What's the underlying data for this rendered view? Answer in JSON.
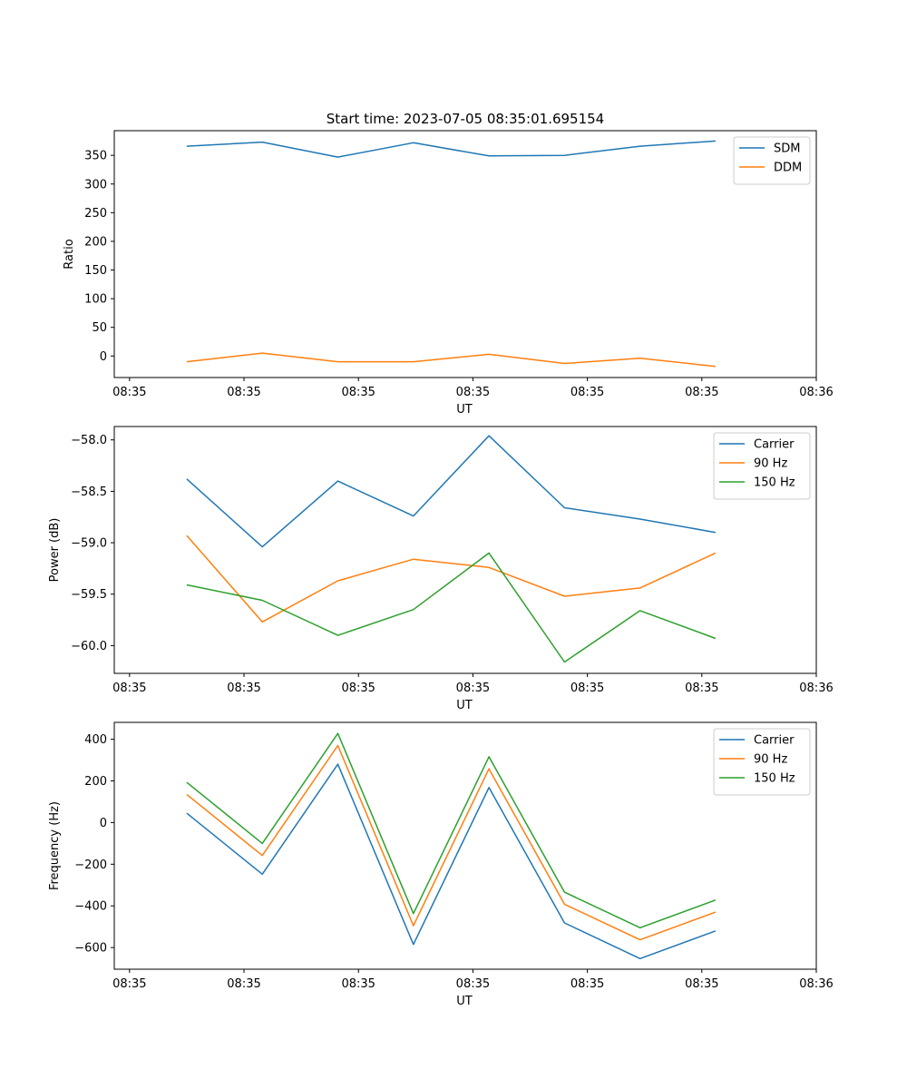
{
  "chart_data": [
    {
      "type": "line",
      "title": "Start time: 2023-07-05 08:35:01.695154",
      "xlabel": "UT",
      "ylabel": "Ratio",
      "xlim": [
        -0.2,
        9.0
      ],
      "x_ticks": [
        0,
        1.5,
        3,
        4.5,
        6,
        7.5,
        9
      ],
      "x_tick_labels": [
        "08:35",
        "08:35",
        "08:35",
        "08:35",
        "08:35",
        "08:35",
        "08:36"
      ],
      "ylim": [
        -37.5,
        393
      ],
      "y_ticks": [
        0,
        50,
        100,
        150,
        200,
        250,
        300,
        350
      ],
      "legend_position": "top-right",
      "x": [
        0.75,
        1.74,
        2.73,
        3.72,
        4.71,
        5.7,
        6.69,
        7.68
      ],
      "series": [
        {
          "name": "SDM",
          "color": "#1f77b4",
          "values": [
            366,
            373,
            347,
            372,
            349,
            350,
            366,
            375
          ]
        },
        {
          "name": "DDM",
          "color": "#ff7f0e",
          "values": [
            -10,
            5,
            -10,
            -10,
            3,
            -13,
            -4,
            -18
          ]
        }
      ]
    },
    {
      "type": "line",
      "title": "",
      "xlabel": "UT",
      "ylabel": "Power (dB)",
      "xlim": [
        -0.2,
        9.0
      ],
      "x_ticks": [
        0,
        1.5,
        3,
        4.5,
        6,
        7.5,
        9
      ],
      "x_tick_labels": [
        "08:35",
        "08:35",
        "08:35",
        "08:35",
        "08:35",
        "08:35",
        "08:36"
      ],
      "ylim": [
        -60.27,
        -57.87
      ],
      "y_ticks": [
        -60.0,
        -59.5,
        -59.0,
        -58.5,
        -58.0
      ],
      "y_tick_labels": [
        "−60.0",
        "−59.5",
        "−59.0",
        "−58.5",
        "−58.0"
      ],
      "legend_position": "top-right",
      "x": [
        0.75,
        1.74,
        2.73,
        3.72,
        4.71,
        5.7,
        6.69,
        7.68
      ],
      "series": [
        {
          "name": "Carrier",
          "color": "#1f77b4",
          "values": [
            -58.38,
            -59.04,
            -58.4,
            -58.74,
            -57.96,
            -58.66,
            -58.77,
            -58.9
          ]
        },
        {
          "name": "90 Hz",
          "color": "#ff7f0e",
          "values": [
            -58.93,
            -59.77,
            -59.37,
            -59.16,
            -59.24,
            -59.52,
            -59.44,
            -59.1
          ]
        },
        {
          "name": "150 Hz",
          "color": "#2ca02c",
          "values": [
            -59.41,
            -59.56,
            -59.9,
            -59.65,
            -59.1,
            -60.16,
            -59.66,
            -59.93
          ]
        }
      ]
    },
    {
      "type": "line",
      "title": "",
      "xlabel": "UT",
      "ylabel": "Frequency (Hz)",
      "xlim": [
        -0.2,
        9.0
      ],
      "x_ticks": [
        0,
        1.5,
        3,
        4.5,
        6,
        7.5,
        9
      ],
      "x_tick_labels": [
        "08:35",
        "08:35",
        "08:35",
        "08:35",
        "08:35",
        "08:35",
        "08:36"
      ],
      "ylim": [
        -704,
        481
      ],
      "y_ticks": [
        -600,
        -400,
        -200,
        0,
        200,
        400
      ],
      "y_tick_labels": [
        "−600",
        "−400",
        "−200",
        "0",
        "200",
        "400"
      ],
      "legend_position": "top-right",
      "x": [
        0.75,
        1.74,
        2.73,
        3.72,
        4.71,
        5.7,
        6.69,
        7.68
      ],
      "series": [
        {
          "name": "Carrier",
          "color": "#1f77b4",
          "values": [
            45,
            -248,
            280,
            -585,
            168,
            -482,
            -653,
            -520
          ]
        },
        {
          "name": "90 Hz",
          "color": "#ff7f0e",
          "values": [
            135,
            -158,
            370,
            -495,
            258,
            -392,
            -563,
            -430
          ]
        },
        {
          "name": "150 Hz",
          "color": "#2ca02c",
          "values": [
            193,
            -100,
            428,
            -437,
            316,
            -334,
            -505,
            -372
          ]
        }
      ]
    }
  ]
}
